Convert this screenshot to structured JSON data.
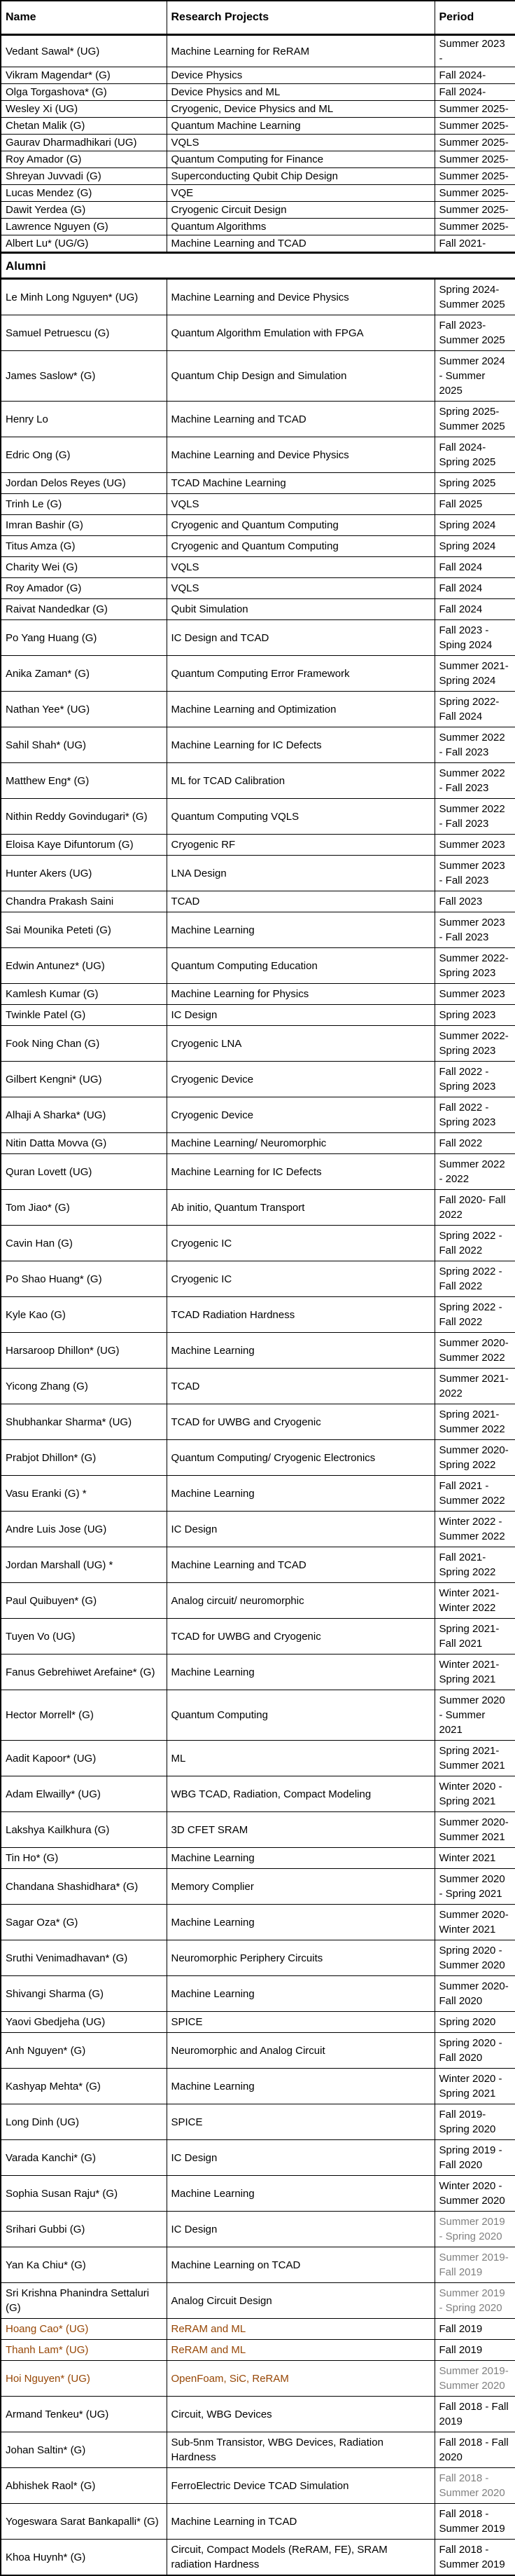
{
  "colors": {
    "accent_orange": "#974706",
    "muted_gray": "#808080",
    "border_black": "#000000"
  },
  "table": {
    "columns": [
      "Name",
      "Research Projects",
      "Period"
    ],
    "section_header": "Alumni",
    "current": [
      {
        "name": "Vedant Sawal* (UG)",
        "project": "Machine Learning for ReRAM",
        "period": "Summer 2023 -"
      },
      {
        "name": "Vikram Magendar* (G)",
        "project": "Device Physics",
        "period": "Fall 2024-"
      },
      {
        "name": "Olga Torgashova* (G)",
        "project": "Device Physics and ML",
        "period": "Fall 2024-"
      },
      {
        "name": "Wesley Xi (UG)",
        "project": "Cryogenic, Device Physics and ML",
        "period": "Summer 2025-"
      },
      {
        "name": "Chetan Malik (G)",
        "project": "Quantum Machine Learning",
        "period": "Summer 2025-"
      },
      {
        "name": "Gaurav Dharmadhikari (UG)",
        "project": "VQLS",
        "period": "Summer 2025-"
      },
      {
        "name": "Roy Amador (G)",
        "project": "Quantum Computing for Finance",
        "period": "Summer 2025-"
      },
      {
        "name": "Shreyan Juvvadi (G)",
        "project": "Superconducting Qubit Chip Design",
        "period": "Summer 2025-"
      },
      {
        "name": "Lucas Mendez (G)",
        "project": "VQE",
        "period": "Summer 2025-"
      },
      {
        "name": "Dawit Yerdea (G)",
        "project": "Cryogenic Circuit Design",
        "period": "Summer 2025-"
      },
      {
        "name": "Lawrence Nguyen (G)",
        "project": "Quantum Algorithms",
        "period": "Summer 2025-"
      },
      {
        "name": "Albert Lu* (UG/G)",
        "project": "Machine Learning and TCAD",
        "period": "Fall 2021-"
      }
    ],
    "alumni": [
      {
        "name": "Le Minh Long Nguyen* (UG)",
        "project": "Machine Learning and Device Physics",
        "period": "Spring 2024- Summer 2025"
      },
      {
        "name": "Samuel Petruescu (G)",
        "project": "Quantum Algorithm Emulation with FPGA",
        "period": "Fall 2023-Summer 2025"
      },
      {
        "name": "James Saslow* (G)",
        "project": "Quantum Chip Design and Simulation",
        "period": "Summer 2024 - Summer 2025"
      },
      {
        "name": "Henry Lo",
        "project": "Machine Learning and TCAD",
        "period": "Spring 2025- Summer 2025"
      },
      {
        "name": "Edric Ong (G)",
        "project": "Machine Learning and Device Physics",
        "period": "Fall 2024-Spring 2025"
      },
      {
        "name": "Jordan Delos Reyes (UG)",
        "project": "TCAD Machine Learning",
        "period": "Spring 2025"
      },
      {
        "name": "Trinh Le (G)",
        "project": "VQLS",
        "period": "Fall 2025"
      },
      {
        "name": "Imran Bashir (G)",
        "project": "Cryogenic and Quantum Computing",
        "period": "Spring 2024"
      },
      {
        "name": "Titus Amza (G)",
        "project": "Cryogenic and Quantum Computing",
        "period": "Spring 2024"
      },
      {
        "name": "Charity Wei (G)",
        "project": "VQLS",
        "period": "Fall 2024"
      },
      {
        "name": "Roy Amador (G)",
        "project": "VQLS",
        "period": "Fall 2024"
      },
      {
        "name": "Raivat Nandedkar (G)",
        "project": "Qubit Simulation",
        "period": "Fall 2024"
      },
      {
        "name": "Po Yang Huang (G)",
        "project": "IC Design and TCAD",
        "period": "Fall 2023 -Sping 2024"
      },
      {
        "name": "Anika Zaman* (G)",
        "project": "Quantum Computing Error Framework",
        "period": "Summer 2021- Spring 2024"
      },
      {
        "name": "Nathan Yee* (UG)",
        "project": "Machine Learning and Optimization",
        "period": "Spring 2022-Fall 2024"
      },
      {
        "name": "Sahil Shah* (UG)",
        "project": "Machine Learning for IC Defects",
        "period": "Summer 2022 - Fall 2023"
      },
      {
        "name": "Matthew Eng* (G)",
        "project": "ML for TCAD Calibration",
        "period": "Summer 2022 - Fall 2023"
      },
      {
        "name": "Nithin Reddy Govindugari* (G)",
        "project": "Quantum Computing VQLS",
        "period": "Summer 2022 - Fall 2023"
      },
      {
        "name": "Eloisa Kaye Difuntorum (G)",
        "project": "Cryogenic RF",
        "period": "Summer 2023"
      },
      {
        "name": "Hunter Akers (UG)",
        "project": "LNA Design",
        "period": "Summer 2023 - Fall 2023"
      },
      {
        "name": "Chandra Prakash Saini",
        "project": "TCAD",
        "period": "Fall 2023"
      },
      {
        "name": "Sai Mounika Peteti (G)",
        "project": "Machine Learning",
        "period": "Summer 2023 - Fall 2023"
      },
      {
        "name": "Edwin Antunez* (UG)",
        "project": "Quantum Computing Education",
        "period": "Summer 2022- Spring 2023"
      },
      {
        "name": "Kamlesh Kumar (G)",
        "project": "Machine Learning for Physics",
        "period": "Summer 2023"
      },
      {
        "name": "Twinkle Patel (G)",
        "project": "IC Design",
        "period": "Spring 2023"
      },
      {
        "name": "Fook Ning Chan (G)",
        "project": "Cryogenic LNA",
        "period": "Summer 2022- Spring 2023"
      },
      {
        "name": "Gilbert Kengni* (UG)",
        "project": "Cryogenic Device",
        "period": "Fall 2022 -Spring 2023"
      },
      {
        "name": "Alhaji A Sharka* (UG)",
        "project": "Cryogenic Device",
        "period": "Fall 2022 - Spring 2023"
      },
      {
        "name": "Nitin Datta Movva (G)",
        "project": "Machine Learning/ Neuromorphic",
        "period": "Fall 2022"
      },
      {
        "name": "Quran Lovett (UG)",
        "project": "Machine Learning for IC Defects",
        "period": "Summer 2022 - 2022"
      },
      {
        "name": "Tom Jiao* (G)",
        "project": "Ab initio, Quantum Transport",
        "period": "Fall 2020- Fall 2022"
      },
      {
        "name": "Cavin Han (G)",
        "project": "Cryogenic IC",
        "period": "Spring 2022 - Fall 2022"
      },
      {
        "name": "Po Shao Huang* (G)",
        "project": "Cryogenic IC",
        "period": "Spring 2022 - Fall 2022"
      },
      {
        "name": "Kyle Kao (G)",
        "project": "TCAD Radiation Hardness",
        "period": "Spring 2022 - Fall 2022"
      },
      {
        "name": "Harsaroop Dhillon* (UG)",
        "project": "Machine Learning",
        "period": "Summer 2020- Summer 2022"
      },
      {
        "name": "Yicong Zhang (G)",
        "project": "TCAD",
        "period": "Summer 2021- 2022"
      },
      {
        "name": "Shubhankar Sharma* (UG)",
        "project": "TCAD for UWBG and Cryogenic",
        "period": "Spring 2021- Summer 2022"
      },
      {
        "name": "Prabjot Dhillon* (G)",
        "project": "Quantum Computing/ Cryogenic Electronics",
        "period": "Summer 2020- Spring 2022"
      },
      {
        "name": "Vasu Eranki (G) *",
        "project": "Machine Learning",
        "period": "Fall 2021 - Summer 2022"
      },
      {
        "name": "Andre Luis Jose (UG)",
        "project": "IC Design",
        "period": "Winter 2022 - Summer 2022"
      },
      {
        "name": "Jordan Marshall (UG) *",
        "project": "Machine Learning and TCAD",
        "period": "Fall 2021-Spring 2022"
      },
      {
        "name": "Paul Quibuyen* (G)",
        "project": "Analog circuit/ neuromorphic",
        "period": "Winter 2021- Winter 2022"
      },
      {
        "name": "Tuyen Vo (UG)",
        "project": "TCAD for UWBG and Cryogenic",
        "period": "Spring 2021-Fall 2021"
      },
      {
        "name": "Fanus Gebrehiwet Arefaine* (G)",
        "project": "Machine Learning",
        "period": "Winter 2021-Spring 2021"
      },
      {
        "name": "Hector Morrell* (G)",
        "project": "Quantum Computing",
        "period": "Summer 2020 - Summer 2021"
      },
      {
        "name": "Aadit Kapoor* (UG)",
        "project": "ML",
        "period": "Spring 2021- Summer 2021"
      },
      {
        "name": "Adam Elwailly* (UG)",
        "project": "WBG TCAD, Radiation, Compact Modeling",
        "period": "Winter 2020 - Spring 2021"
      },
      {
        "name": "Lakshya Kailkhura (G)",
        "project": "3D CFET SRAM",
        "period": "Summer 2020- Summer 2021"
      },
      {
        "name": "Tin Ho* (G)",
        "project": "Machine Learning",
        "period": "Winter 2021"
      },
      {
        "name": "Chandana Shashidhara* (G)",
        "project": "Memory Complier",
        "period": "Summer 2020 - Spring 2021"
      },
      {
        "name": "Sagar Oza* (G)",
        "project": "Machine Learning",
        "period": "Summer 2020- Winter 2021"
      },
      {
        "name": "Sruthi Venimadhavan* (G)",
        "project": "Neuromorphic Periphery Circuits",
        "period": "Spring 2020 - Summer 2020"
      },
      {
        "name": "Shivangi Sharma (G)",
        "project": "Machine Learning",
        "period": "Summer 2020-Fall 2020"
      },
      {
        "name": "Yaovi Gbedjeha (UG)",
        "project": "SPICE",
        "period": "Spring 2020"
      },
      {
        "name": "Anh Nguyen* (G)",
        "project": "Neuromorphic and Analog Circuit",
        "period": "Spring 2020 -Fall 2020"
      },
      {
        "name": "Kashyap Mehta* (G)",
        "project": "Machine Learning",
        "period": "Winter 2020 - Spring 2021"
      },
      {
        "name": "Long Dinh (UG)",
        "project": "SPICE",
        "period": "Fall 2019- Spring 2020"
      },
      {
        "name": "Varada Kanchi* (G)",
        "project": "IC Design",
        "period": "Spring 2019 -Fall 2020"
      },
      {
        "name": "Sophia Susan Raju* (G)",
        "project": "Machine Learning",
        "period": "Winter 2020 - Summer 2020"
      },
      {
        "name": "Srihari Gubbi (G)",
        "project": "IC Design",
        "period": "Summer 2019 - Spring 2020",
        "grayPeriod": true
      },
      {
        "name": "Yan Ka Chiu* (G)",
        "project": "Machine Learning on TCAD",
        "period": "Summer 2019-Fall 2019",
        "grayPeriod": true
      },
      {
        "name": "Sri Krishna Phanindra Settaluri (G)",
        "project": "Analog Circuit Design",
        "period": "Summer 2019 - Spring 2020",
        "grayPeriod": true
      },
      {
        "name": "Hoang Cao* (UG)",
        "project": "ReRAM and ML",
        "period": "Fall 2019",
        "orange": true
      },
      {
        "name": "Thanh Lam* (UG)",
        "project": "ReRAM and ML",
        "period": "Fall 2019",
        "orange": true
      },
      {
        "name": "Hoi Nguyen* (UG)",
        "project": "OpenFoam, SiC, ReRAM",
        "period": "Summer 2019- Summer 2020",
        "orange": true,
        "grayPeriod": true
      },
      {
        "name": "Armand Tenkeu* (UG)",
        "project": "Circuit, WBG Devices",
        "period": "Fall 2018 - Fall 2019"
      },
      {
        "name": "Johan Saltin* (G)",
        "project": "Sub-5nm Transistor, WBG Devices, Radiation Hardness",
        "period": "Fall 2018 - Fall 2020"
      },
      {
        "name": "Abhishek Raol* (G)",
        "project": "FerroElectric Device TCAD Simulation",
        "period": "Fall 2018 - Summer 2020",
        "grayPeriod": true
      },
      {
        "name": "Yogeswara Sarat Bankapalli* (G)",
        "project": "Machine Learning in TCAD",
        "period": "Fall 2018 - Summer 2019"
      },
      {
        "name": "Khoa Huynh* (G)",
        "project": "Circuit, Compact Models (ReRAM, FE), SRAM radiation Hardness",
        "period": "Fall 2018 - Summer 2019"
      }
    ]
  }
}
